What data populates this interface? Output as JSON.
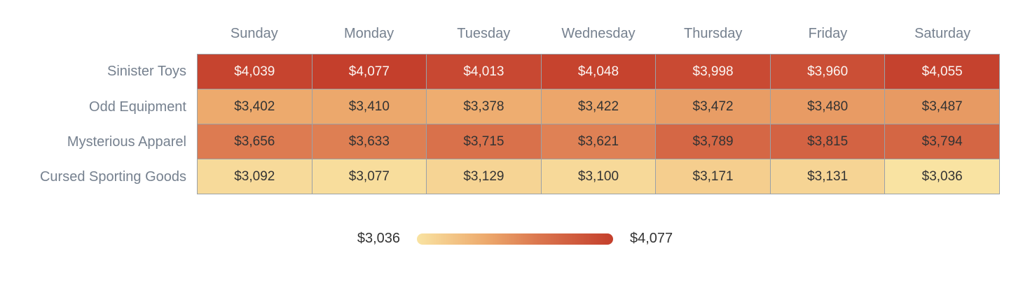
{
  "chart_data": {
    "type": "heatmap",
    "columns": [
      "Sunday",
      "Monday",
      "Tuesday",
      "Wednesday",
      "Thursday",
      "Friday",
      "Saturday"
    ],
    "rows": [
      {
        "label": "Sinister Toys",
        "values": [
          4039,
          4077,
          4013,
          4048,
          3998,
          3960,
          4055
        ]
      },
      {
        "label": "Odd Equipment",
        "values": [
          3402,
          3410,
          3378,
          3422,
          3472,
          3480,
          3487
        ]
      },
      {
        "label": "Mysterious Apparel",
        "values": [
          3656,
          3633,
          3715,
          3621,
          3789,
          3815,
          3794
        ]
      },
      {
        "label": "Cursed Sporting Goods",
        "values": [
          3092,
          3077,
          3129,
          3100,
          3171,
          3131,
          3036
        ]
      }
    ],
    "value_prefix": "$",
    "min": 3036,
    "max": 4077,
    "legend": {
      "min_label": "$3,036",
      "max_label": "$4,077"
    },
    "colors": {
      "scale_stops": [
        0,
        0.35,
        0.62,
        1
      ],
      "scale_colors": [
        "#f9e3a2",
        "#edaa6d",
        "#db764e",
        "#c43f2c"
      ],
      "gridline": "#9aa1a8",
      "label_text": "#76818f",
      "cell_text_dark": "#333333",
      "cell_text_light": "#fbf4f1"
    },
    "layout": {
      "grid_on": false,
      "legend_position": "bottom-center"
    }
  }
}
